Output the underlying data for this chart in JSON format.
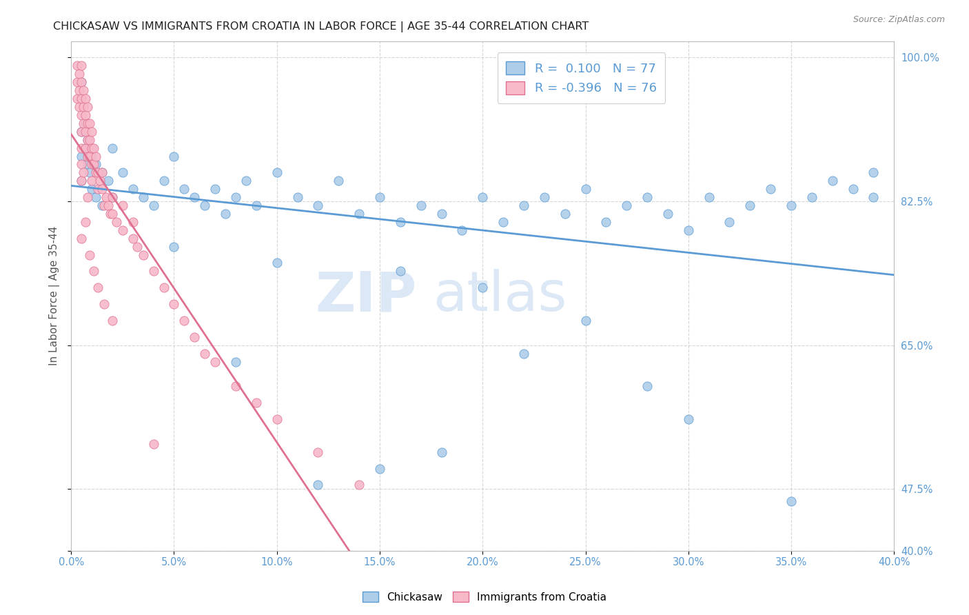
{
  "title": "CHICKASAW VS IMMIGRANTS FROM CROATIA IN LABOR FORCE | AGE 35-44 CORRELATION CHART",
  "source": "Source: ZipAtlas.com",
  "ylabel": "In Labor Force | Age 35-44",
  "xmin": 0.0,
  "xmax": 0.4,
  "ymin": 0.4,
  "ymax": 1.02,
  "yticks": [
    0.4,
    0.475,
    0.65,
    0.825,
    1.0
  ],
  "ytick_labels": [
    "40.0%",
    "47.5%",
    "65.0%",
    "82.5%",
    "100.0%"
  ],
  "R_blue": 0.1,
  "N_blue": 77,
  "R_pink": -0.396,
  "N_pink": 76,
  "blue_fill": "#aecde8",
  "blue_edge": "#5b9bd5",
  "pink_fill": "#f7b8c8",
  "pink_edge": "#e07090",
  "blue_line_color": "#5b9bd5",
  "pink_line_color": "#e07090",
  "watermark_color": "#dce8f5",
  "blue_scatter_x": [
    0.005,
    0.005,
    0.005,
    0.005,
    0.005,
    0.007,
    0.007,
    0.008,
    0.008,
    0.009,
    0.01,
    0.01,
    0.012,
    0.012,
    0.015,
    0.015,
    0.018,
    0.02,
    0.02,
    0.025,
    0.03,
    0.035,
    0.04,
    0.045,
    0.05,
    0.055,
    0.06,
    0.065,
    0.07,
    0.075,
    0.08,
    0.085,
    0.09,
    0.1,
    0.11,
    0.12,
    0.13,
    0.14,
    0.15,
    0.16,
    0.17,
    0.18,
    0.19,
    0.2,
    0.21,
    0.22,
    0.23,
    0.24,
    0.25,
    0.26,
    0.27,
    0.28,
    0.29,
    0.3,
    0.31,
    0.32,
    0.33,
    0.34,
    0.35,
    0.36,
    0.37,
    0.38,
    0.39,
    0.39,
    0.25,
    0.18,
    0.12,
    0.08,
    0.15,
    0.22,
    0.3,
    0.1,
    0.05,
    0.28,
    0.16,
    0.35,
    0.2
  ],
  "blue_scatter_y": [
    0.97,
    0.95,
    0.91,
    0.88,
    0.85,
    0.92,
    0.89,
    0.9,
    0.87,
    0.86,
    0.88,
    0.84,
    0.87,
    0.83,
    0.86,
    0.82,
    0.85,
    0.89,
    0.83,
    0.86,
    0.84,
    0.83,
    0.82,
    0.85,
    0.88,
    0.84,
    0.83,
    0.82,
    0.84,
    0.81,
    0.83,
    0.85,
    0.82,
    0.86,
    0.83,
    0.82,
    0.85,
    0.81,
    0.83,
    0.8,
    0.82,
    0.81,
    0.79,
    0.83,
    0.8,
    0.82,
    0.83,
    0.81,
    0.84,
    0.8,
    0.82,
    0.83,
    0.81,
    0.79,
    0.83,
    0.8,
    0.82,
    0.84,
    0.82,
    0.83,
    0.85,
    0.84,
    0.86,
    0.83,
    0.68,
    0.52,
    0.48,
    0.63,
    0.5,
    0.64,
    0.56,
    0.75,
    0.77,
    0.6,
    0.74,
    0.46,
    0.72
  ],
  "pink_scatter_x": [
    0.003,
    0.003,
    0.003,
    0.004,
    0.004,
    0.004,
    0.005,
    0.005,
    0.005,
    0.005,
    0.005,
    0.005,
    0.005,
    0.005,
    0.006,
    0.006,
    0.006,
    0.007,
    0.007,
    0.007,
    0.007,
    0.008,
    0.008,
    0.008,
    0.008,
    0.009,
    0.009,
    0.009,
    0.01,
    0.01,
    0.01,
    0.01,
    0.011,
    0.011,
    0.012,
    0.012,
    0.013,
    0.013,
    0.014,
    0.015,
    0.015,
    0.016,
    0.017,
    0.018,
    0.019,
    0.02,
    0.02,
    0.022,
    0.025,
    0.025,
    0.03,
    0.03,
    0.032,
    0.035,
    0.04,
    0.045,
    0.05,
    0.055,
    0.06,
    0.065,
    0.07,
    0.08,
    0.09,
    0.1,
    0.12,
    0.14,
    0.04,
    0.008,
    0.006,
    0.007,
    0.005,
    0.009,
    0.011,
    0.013,
    0.016,
    0.02
  ],
  "pink_scatter_y": [
    0.99,
    0.97,
    0.95,
    0.98,
    0.96,
    0.94,
    0.99,
    0.97,
    0.95,
    0.93,
    0.91,
    0.89,
    0.87,
    0.85,
    0.96,
    0.94,
    0.92,
    0.95,
    0.93,
    0.91,
    0.89,
    0.94,
    0.92,
    0.9,
    0.88,
    0.92,
    0.9,
    0.88,
    0.91,
    0.89,
    0.87,
    0.85,
    0.89,
    0.87,
    0.88,
    0.86,
    0.86,
    0.84,
    0.85,
    0.86,
    0.84,
    0.82,
    0.83,
    0.82,
    0.81,
    0.83,
    0.81,
    0.8,
    0.82,
    0.79,
    0.8,
    0.78,
    0.77,
    0.76,
    0.74,
    0.72,
    0.7,
    0.68,
    0.66,
    0.64,
    0.63,
    0.6,
    0.58,
    0.56,
    0.52,
    0.48,
    0.53,
    0.83,
    0.86,
    0.8,
    0.78,
    0.76,
    0.74,
    0.72,
    0.7,
    0.68
  ]
}
